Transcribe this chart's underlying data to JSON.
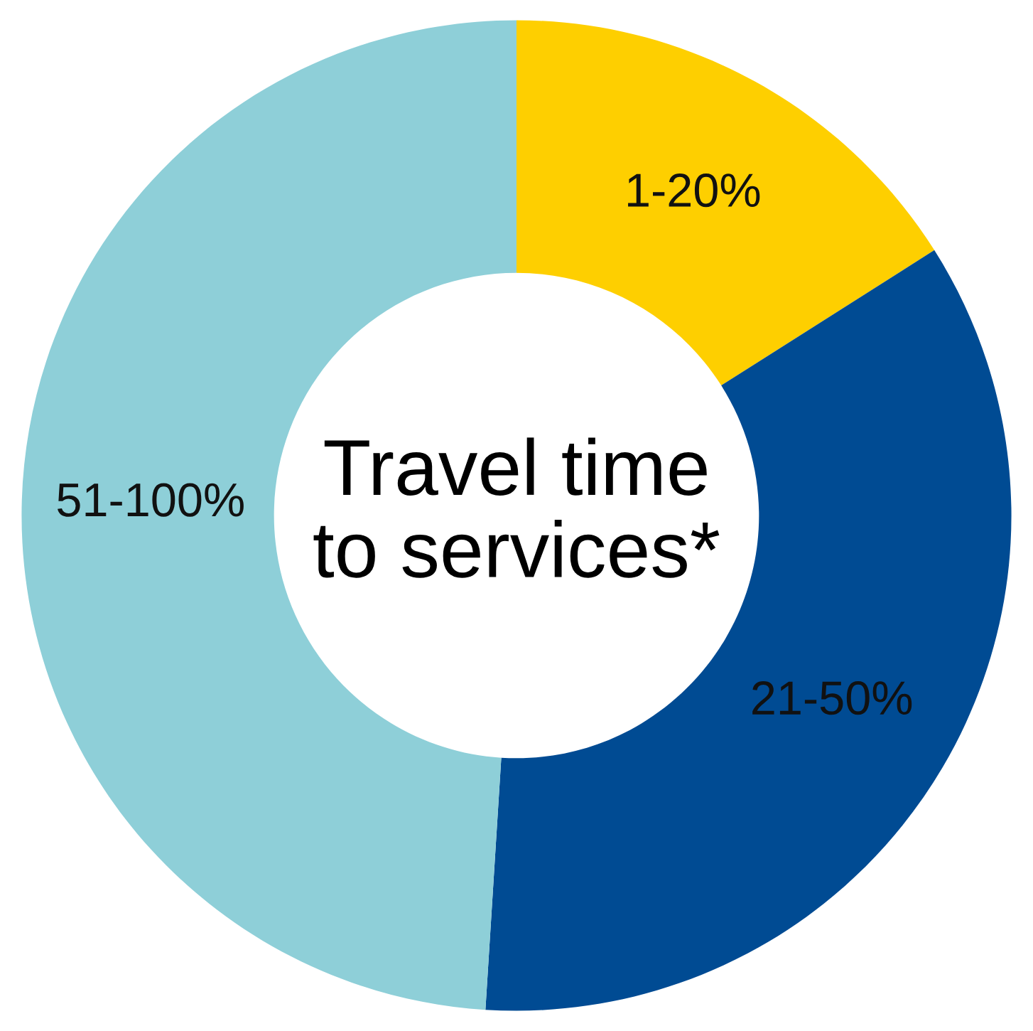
{
  "chart_data": {
    "type": "donut",
    "categories": [
      "1-20%",
      "21-50%",
      "51-100%"
    ],
    "values": [
      16,
      35,
      49
    ],
    "colors": [
      "#fecf00",
      "#004b93",
      "#8ecfd8"
    ],
    "annotations": [
      "Travel time to services*"
    ],
    "legend": false
  }
}
